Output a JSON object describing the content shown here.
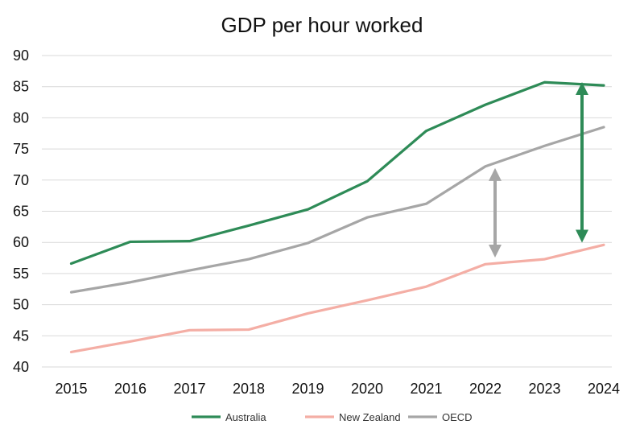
{
  "chart_data": {
    "type": "line",
    "title": "GDP per hour worked",
    "xlabel": "",
    "ylabel": "",
    "categories": [
      "2015",
      "2016",
      "2017",
      "2018",
      "2019",
      "2020",
      "2021",
      "2022",
      "2023",
      "2024"
    ],
    "y_ticks": [
      "40",
      "45",
      "50",
      "55",
      "60",
      "65",
      "70",
      "75",
      "80",
      "85",
      "90"
    ],
    "ylim": [
      40,
      90
    ],
    "grid": true,
    "legend_position": "bottom",
    "series": [
      {
        "name": "Australia",
        "color": "#2e8b57",
        "values": [
          56.6,
          60.1,
          60.2,
          62.7,
          65.3,
          69.8,
          77.9,
          82.1,
          85.7,
          85.2
        ]
      },
      {
        "name": "New Zealand",
        "color": "#f4aea5",
        "values": [
          42.4,
          44.1,
          45.9,
          46.0,
          48.6,
          50.7,
          52.9,
          56.5,
          57.3,
          59.6
        ]
      },
      {
        "name": "OECD",
        "color": "#a6a6a6",
        "values": [
          52.0,
          53.6,
          55.5,
          57.3,
          59.9,
          64.0,
          66.2,
          72.2,
          75.5,
          78.5
        ]
      }
    ],
    "annotations": [
      {
        "type": "double-arrow",
        "color": "#a6a6a6",
        "x": "2022",
        "from": 70.9,
        "to": 58.6
      },
      {
        "type": "double-arrow",
        "color": "#2e8b57",
        "x": "2024",
        "from": 84.7,
        "to": 61.0
      }
    ]
  }
}
